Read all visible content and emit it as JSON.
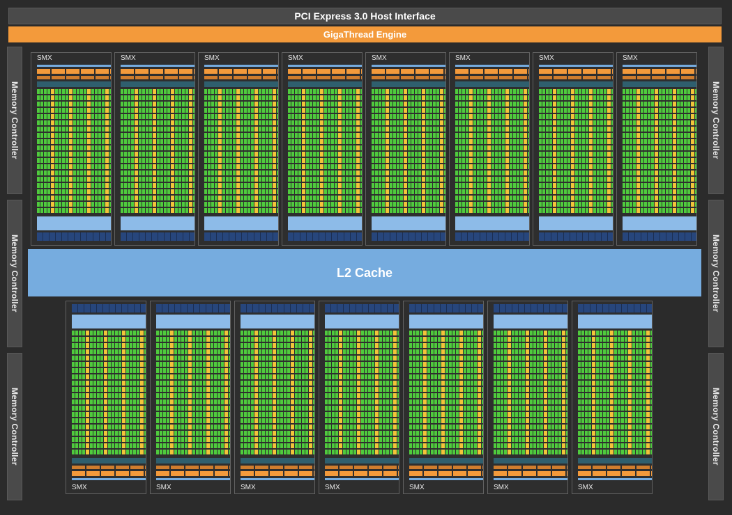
{
  "pci_label": "PCI Express 3.0 Host Interface",
  "gigathread_label": "GigaThread Engine",
  "l2_label": "L2 Cache",
  "memory_controllers": [
    {
      "label": "Memory Controller"
    },
    {
      "label": "Memory Controller"
    },
    {
      "label": "Memory Controller"
    },
    {
      "label": "Memory Controller"
    },
    {
      "label": "Memory Controller"
    },
    {
      "label": "Memory Controller"
    }
  ],
  "smx_top": [
    {
      "label": "SMX"
    },
    {
      "label": "SMX"
    },
    {
      "label": "SMX"
    },
    {
      "label": "SMX"
    },
    {
      "label": "SMX"
    },
    {
      "label": "SMX"
    },
    {
      "label": "SMX"
    },
    {
      "label": "SMX"
    }
  ],
  "smx_bottom": [
    {
      "label": "SMX"
    },
    {
      "label": "SMX"
    },
    {
      "label": "SMX"
    },
    {
      "label": "SMX"
    },
    {
      "label": "SMX"
    },
    {
      "label": "SMX"
    },
    {
      "label": "SMX"
    }
  ],
  "colors": {
    "background": "#2b2b2b",
    "orange": "#f39a3b",
    "l2_blue": "#76acdf",
    "core_green": "#4fcb3d",
    "core_yellow": "#f2c43a",
    "teal": "#2f5f6e",
    "navy": "#27467c"
  }
}
